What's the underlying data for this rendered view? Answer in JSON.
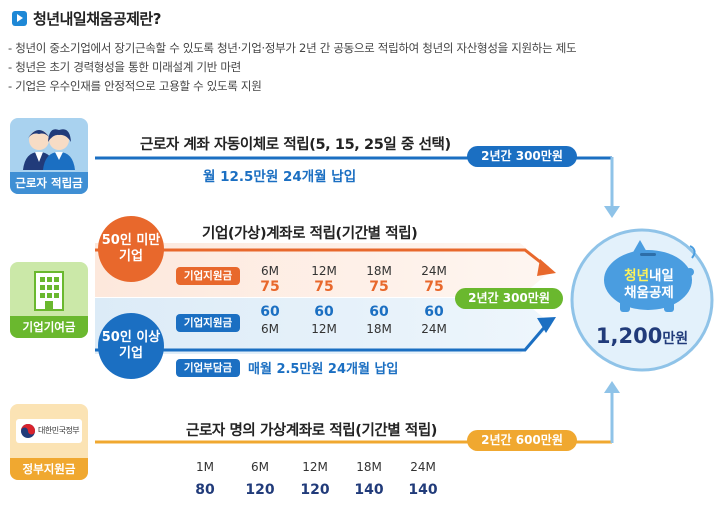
{
  "title": "청년내일채움공제란?",
  "intro": [
    "- 청년이 중소기업에서 장기근속할 수 있도록 청년·기업·정부가 2년 간 공동으로 적립하여 청년의 자산형성을 지원하는 제도",
    "- 청년은 초기 경력형성을 통한 미래설계 기반 마련",
    "- 기업은 우수인재를 안정적으로 고용할 수 있도록 지원"
  ],
  "worker": {
    "label": "근로자 적립금",
    "heading": "근로자 계좌 자동이체로 적립(5, 15, 25일 중 선택)",
    "sub": "월 12.5만원 24개월 납입",
    "total": "2년간 300만원"
  },
  "company": {
    "label": "기업기여금",
    "heading": "기업(가상)계좌로 적립(기간별 적립)",
    "small_circle": "50인 미만\n기업",
    "large_circle": "50인 이상\n기업",
    "support_tag": "기업지원금",
    "burden_tag": "기업부담금",
    "burden_text": "매월 2.5만원 24개월 납입",
    "months": [
      "6M",
      "12M",
      "18M",
      "24M"
    ],
    "small_values": [
      "75",
      "75",
      "75",
      "75"
    ],
    "large_values": [
      "60",
      "60",
      "60",
      "60"
    ],
    "total": "2년간 300만원"
  },
  "government": {
    "logo_text": "대한민국정부",
    "label": "정부지원금",
    "heading": "근로자 명의 가상계좌로 적립(기간별 적립)",
    "months": [
      "1M",
      "6M",
      "12M",
      "18M",
      "24M"
    ],
    "values": [
      "80",
      "120",
      "120",
      "140",
      "140"
    ],
    "total": "2년간 600만원"
  },
  "result": {
    "name_line1_a": "청년",
    "name_line1_b": "내일",
    "name_line2": "채움공제",
    "amount": "1,200",
    "unit": "만원"
  },
  "colors": {
    "blue": "#1b6fc2",
    "light_blue": "#8fc3e8",
    "orange": "#e8682c",
    "gold": "#f0a830",
    "green": "#6ab82e",
    "navy": "#213b7a"
  }
}
